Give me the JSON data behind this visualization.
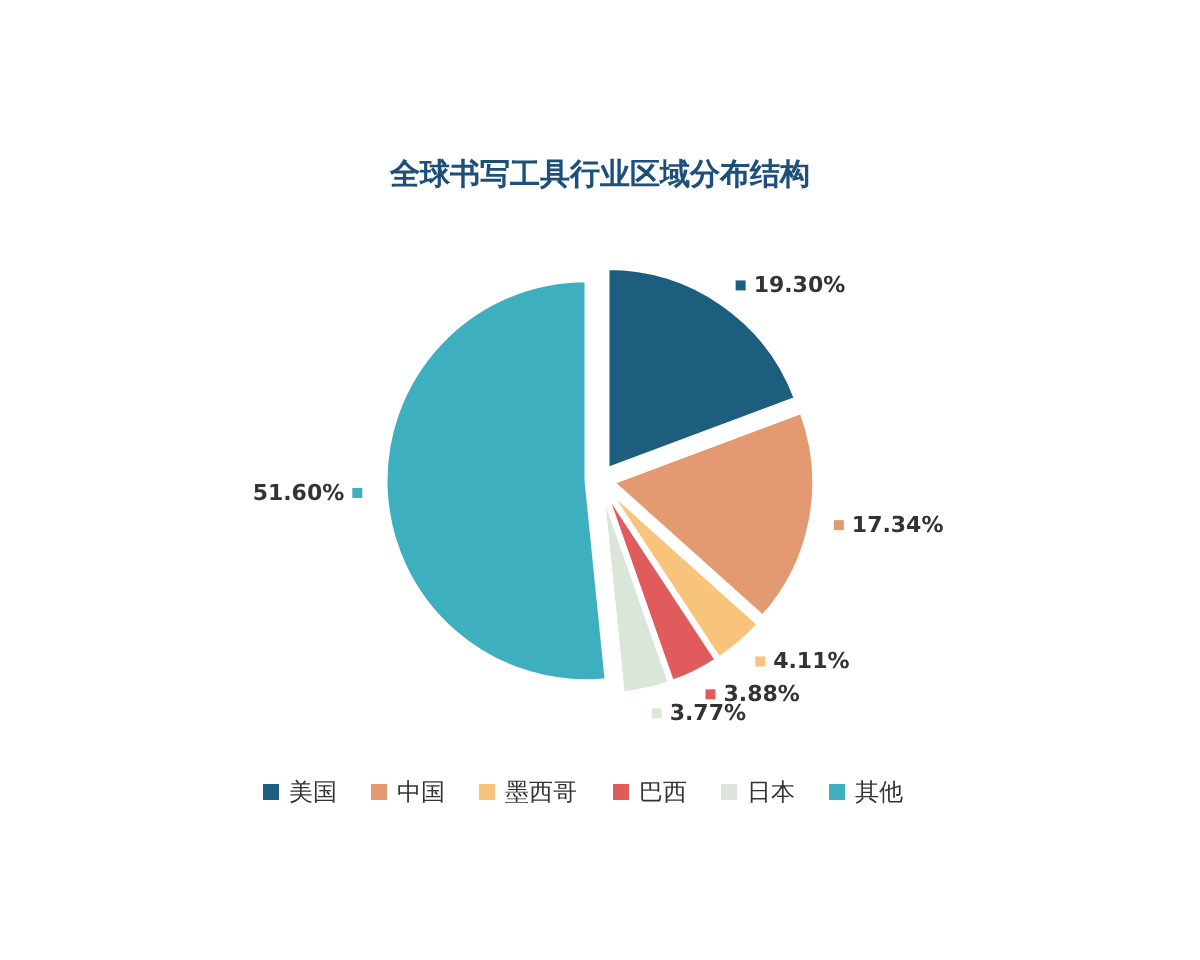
{
  "chart_data": {
    "type": "pie",
    "title": "全球书写工具行业区域分布结构",
    "categories": [
      "美国",
      "中国",
      "墨西哥",
      "巴西",
      "日本",
      "其他"
    ],
    "values": [
      19.3,
      17.34,
      4.11,
      3.88,
      3.77,
      51.6
    ],
    "colors": [
      "#1d5e7e",
      "#e39a70",
      "#f8c47c",
      "#e05c5c",
      "#d9e6d8",
      "#3eafbf"
    ],
    "value_labels": [
      "19.30%",
      "17.34%",
      "4.11%",
      "3.88%",
      "3.77%",
      "51.60%"
    ],
    "legend": "bottom"
  }
}
